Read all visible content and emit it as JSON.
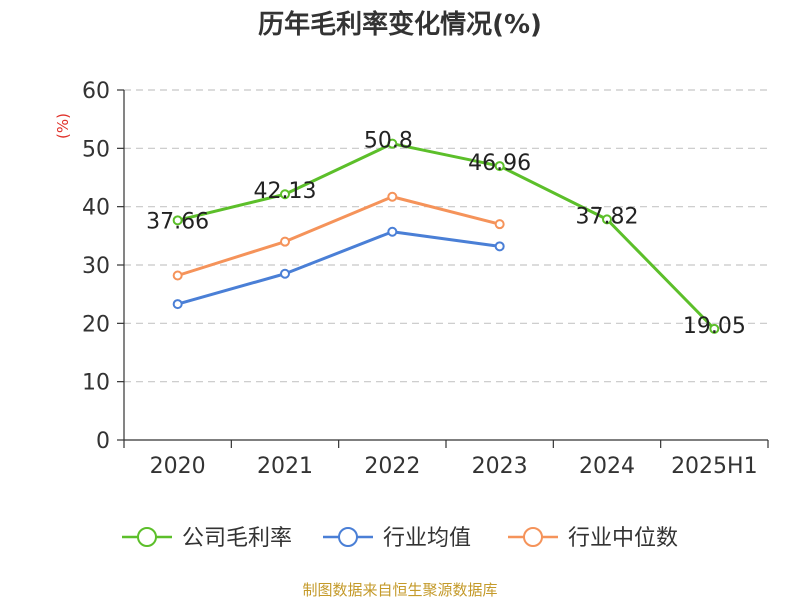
{
  "chart_data": {
    "type": "line",
    "title": "历年毛利率变化情况(%)",
    "unit_label": "(%)",
    "categories": [
      "2020",
      "2021",
      "2022",
      "2023",
      "2024",
      "2025H1"
    ],
    "ylim": [
      0,
      60
    ],
    "yticks": [
      "0",
      "10",
      "20",
      "30",
      "40",
      "50",
      "60"
    ],
    "grid": true,
    "legend_position": "bottom",
    "series": [
      {
        "name": "公司毛利率",
        "color": "#5cbf2a",
        "values": [
          37.66,
          42.13,
          50.8,
          46.96,
          37.82,
          19.05
        ],
        "labels": [
          "37.66",
          "42.13",
          "50.8",
          "46.96",
          "37.82",
          "19.05"
        ]
      },
      {
        "name": "行业均值",
        "color": "#4a7fd6",
        "values": [
          23.3,
          28.5,
          35.7,
          33.2,
          null,
          null
        ]
      },
      {
        "name": "行业中位数",
        "color": "#f5935a",
        "values": [
          28.2,
          34.0,
          41.7,
          37.0,
          null,
          null
        ]
      }
    ],
    "source": "制图数据来自恒生聚源数据库"
  }
}
